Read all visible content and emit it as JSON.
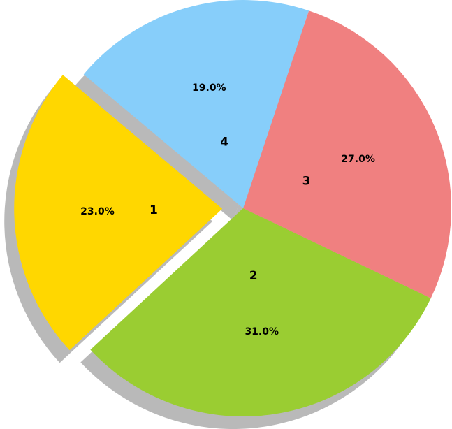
{
  "chart_data": {
    "type": "pie",
    "labels": [
      "1",
      "2",
      "3",
      "4"
    ],
    "values": [
      23.0,
      31.0,
      27.0,
      19.0
    ],
    "percent_labels": [
      "23.0%",
      "31.0%",
      "27.0%",
      "19.0%"
    ],
    "colors": [
      "#ffd700",
      "#9acd32",
      "#f08080",
      "#87cefa"
    ],
    "explode": [
      0.1,
      0,
      0,
      0
    ],
    "shadow": true,
    "start_angle_deg": 140,
    "direction": "counterclockwise",
    "legend": "none",
    "title": ""
  }
}
